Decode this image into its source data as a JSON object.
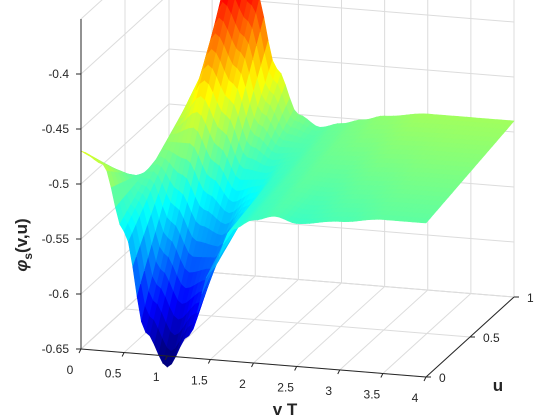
{
  "chart_data": {
    "type": "surface",
    "title": "",
    "xlabel": "v T",
    "ylabel": "u",
    "zlabel_main": "φ",
    "zlabel_sub": "s",
    "zlabel_rest": "(v,u)",
    "xlim": [
      0,
      4
    ],
    "ylim": [
      0,
      1
    ],
    "zlim": [
      -0.65,
      -0.35
    ],
    "x_ticks": [
      "0",
      "0.5",
      "1",
      "1.5",
      "2",
      "2.5",
      "3",
      "3.5",
      "4"
    ],
    "y_ticks": [
      "0",
      "0.5",
      "1"
    ],
    "z_ticks": [
      "-0.4",
      "-0.45",
      "-0.5",
      "-0.55",
      "-0.6",
      "-0.65"
    ],
    "colormap": "jet",
    "grid": true,
    "profile_u0": {
      "v": [
        0,
        0.25,
        0.5,
        0.75,
        1.0,
        1.25,
        1.5,
        1.75,
        2.0,
        2.25,
        2.5,
        3.0,
        3.5,
        4.0
      ],
      "z": [
        -0.47,
        -0.48,
        -0.54,
        -0.63,
        -0.66,
        -0.63,
        -0.57,
        -0.53,
        -0.52,
        -0.515,
        -0.52,
        -0.515,
        -0.51,
        -0.51
      ]
    },
    "profile_u1": {
      "v": [
        0,
        0.25,
        0.5,
        0.75,
        1.0,
        1.25,
        1.5,
        1.75,
        2.0,
        2.25,
        2.5,
        3.0,
        3.5,
        4.0
      ],
      "z": [
        -0.59,
        -0.585,
        -0.45,
        -0.36,
        -0.39,
        -0.46,
        -0.5,
        -0.51,
        -0.505,
        -0.5,
        -0.495,
        -0.49,
        -0.49,
        -0.49
      ]
    }
  }
}
